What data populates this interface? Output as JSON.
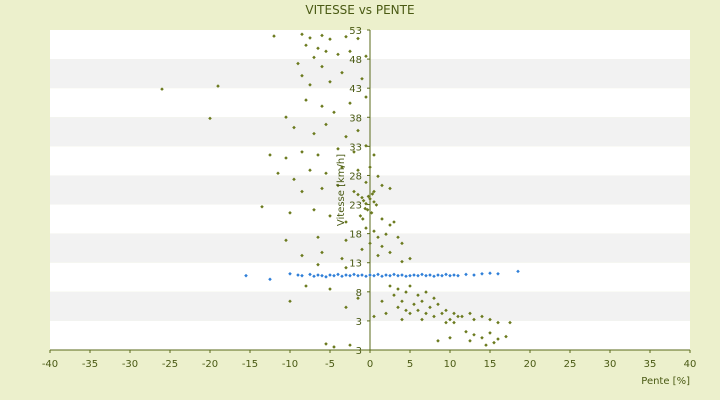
{
  "chart_data": {
    "type": "scatter",
    "title": "VITESSE vs PENTE",
    "xlabel": "Pente [%]",
    "ylabel": "Vitesse [km/h]",
    "xlim": [
      -40,
      40
    ],
    "ylim": [
      3,
      55.5
    ],
    "x_ticks": [
      -40,
      -35,
      -30,
      -25,
      -20,
      -15,
      -10,
      -5,
      0,
      5,
      10,
      15,
      20,
      25,
      30,
      35,
      40
    ],
    "y_tick_labels": [
      "53",
      "48",
      "43",
      "38",
      "33",
      "28",
      "23",
      "18",
      "13",
      "8",
      "3",
      "3"
    ],
    "grid": "horizontal bands",
    "legend": "none",
    "colors": {
      "background": "#ecf0cc",
      "band_light": "#ffffff",
      "band_dark": "#f2f2f2",
      "axis": "#5a6a1a",
      "text": "#4a5a14",
      "series_1": "#6b7a1e",
      "series_2": "#2f7fd8"
    },
    "series": [
      {
        "marker": "small-diamond",
        "color": "#6b7a1e",
        "points": [
          [
            -12.0,
            54.5
          ],
          [
            -8.5,
            54.8
          ],
          [
            -7.5,
            54.2
          ],
          [
            -6.0,
            54.6
          ],
          [
            -5.0,
            54.0
          ],
          [
            -3.0,
            54.4
          ],
          [
            -1.5,
            54.1
          ],
          [
            -8.0,
            53.0
          ],
          [
            -6.5,
            52.5
          ],
          [
            -5.5,
            52.0
          ],
          [
            -4.0,
            51.5
          ],
          [
            -7.0,
            51.0
          ],
          [
            -2.5,
            52.0
          ],
          [
            -0.5,
            51.2
          ],
          [
            -9.0,
            50.0
          ],
          [
            -6.0,
            49.5
          ],
          [
            -3.5,
            48.5
          ],
          [
            -8.5,
            48.0
          ],
          [
            -5.0,
            47.0
          ],
          [
            -1.0,
            47.5
          ],
          [
            -7.5,
            46.5
          ],
          [
            -26.0,
            45.8
          ],
          [
            -19.0,
            46.3
          ],
          [
            -20.0,
            41.0
          ],
          [
            -10.5,
            41.2
          ],
          [
            -8.0,
            44.0
          ],
          [
            -6.0,
            43.0
          ],
          [
            -4.5,
            42.0
          ],
          [
            -2.5,
            43.5
          ],
          [
            -0.5,
            44.5
          ],
          [
            -9.5,
            39.5
          ],
          [
            -7.0,
            38.5
          ],
          [
            -3.0,
            38.0
          ],
          [
            -1.5,
            39.0
          ],
          [
            -5.5,
            40.0
          ],
          [
            -12.5,
            35.0
          ],
          [
            -10.5,
            34.5
          ],
          [
            -8.5,
            35.5
          ],
          [
            -6.5,
            35.0
          ],
          [
            -4.0,
            36.0
          ],
          [
            -2.0,
            35.5
          ],
          [
            -0.5,
            36.5
          ],
          [
            0.5,
            35.0
          ],
          [
            -11.5,
            32.0
          ],
          [
            -9.5,
            31.0
          ],
          [
            -7.5,
            32.5
          ],
          [
            -5.5,
            32.0
          ],
          [
            -3.5,
            33.0
          ],
          [
            -1.5,
            32.5
          ],
          [
            0.0,
            33.0
          ],
          [
            1.0,
            31.5
          ],
          [
            -8.5,
            29.0
          ],
          [
            -6.0,
            29.5
          ],
          [
            -4.0,
            30.0
          ],
          [
            -2.0,
            29.0
          ],
          [
            -0.5,
            30.5
          ],
          [
            0.5,
            29.0
          ],
          [
            1.5,
            30.0
          ],
          [
            2.5,
            29.5
          ],
          [
            -1.5,
            28.5
          ],
          [
            -1.0,
            28.0
          ],
          [
            -0.8,
            27.5
          ],
          [
            -0.5,
            27.0
          ],
          [
            -0.2,
            28.2
          ],
          [
            0.0,
            27.8
          ],
          [
            0.3,
            28.6
          ],
          [
            0.5,
            27.3
          ],
          [
            0.8,
            26.8
          ],
          [
            -0.6,
            26.2
          ],
          [
            -0.3,
            26.0
          ],
          [
            0.2,
            25.5
          ],
          [
            -1.2,
            25.0
          ],
          [
            -0.9,
            24.5
          ],
          [
            -13.5,
            26.5
          ],
          [
            -10.0,
            25.5
          ],
          [
            -7.0,
            26.0
          ],
          [
            -5.0,
            25.0
          ],
          [
            -3.0,
            24.0
          ],
          [
            1.5,
            24.5
          ],
          [
            2.5,
            23.5
          ],
          [
            3.0,
            24.0
          ],
          [
            -0.5,
            23.0
          ],
          [
            0.5,
            22.5
          ],
          [
            1.0,
            21.5
          ],
          [
            2.0,
            22.0
          ],
          [
            -10.5,
            21.0
          ],
          [
            -6.5,
            21.5
          ],
          [
            -3.0,
            21.0
          ],
          [
            0.0,
            20.5
          ],
          [
            1.5,
            20.0
          ],
          [
            3.5,
            21.5
          ],
          [
            4.0,
            20.5
          ],
          [
            -8.5,
            18.5
          ],
          [
            -6.0,
            19.0
          ],
          [
            -3.5,
            18.0
          ],
          [
            -1.0,
            19.5
          ],
          [
            1.0,
            18.5
          ],
          [
            2.5,
            19.0
          ],
          [
            4.0,
            17.5
          ],
          [
            5.0,
            18.0
          ],
          [
            -6.5,
            17.0
          ],
          [
            -3.0,
            16.5
          ],
          [
            2.5,
            13.5
          ],
          [
            3.5,
            13.0
          ],
          [
            4.5,
            12.5
          ],
          [
            5.0,
            13.5
          ],
          [
            6.0,
            12.0
          ],
          [
            7.0,
            12.5
          ],
          [
            8.0,
            11.5
          ],
          [
            3.0,
            12.0
          ],
          [
            4.0,
            11.0
          ],
          [
            5.5,
            10.5
          ],
          [
            6.5,
            11.0
          ],
          [
            7.5,
            10.0
          ],
          [
            8.5,
            10.5
          ],
          [
            9.5,
            9.5
          ],
          [
            10.5,
            9.0
          ],
          [
            11.5,
            8.5
          ],
          [
            12.5,
            9.0
          ],
          [
            3.5,
            10.0
          ],
          [
            4.5,
            9.5
          ],
          [
            5.0,
            9.0
          ],
          [
            6.0,
            9.5
          ],
          [
            7.0,
            9.0
          ],
          [
            8.0,
            8.5
          ],
          [
            9.0,
            9.0
          ],
          [
            10.0,
            8.0
          ],
          [
            11.0,
            8.5
          ],
          [
            13.0,
            8.0
          ],
          [
            14.0,
            8.5
          ],
          [
            15.0,
            8.0
          ],
          [
            16.0,
            7.5
          ],
          [
            17.5,
            7.5
          ],
          [
            4.0,
            8.0
          ],
          [
            6.5,
            8.0
          ],
          [
            9.5,
            7.5
          ],
          [
            10.5,
            7.5
          ],
          [
            1.5,
            11.0
          ],
          [
            2.0,
            9.0
          ],
          [
            -1.5,
            11.5
          ],
          [
            -3.0,
            10.0
          ],
          [
            -10.0,
            11.0
          ],
          [
            -8.0,
            13.5
          ],
          [
            -5.0,
            13.0
          ],
          [
            0.5,
            8.5
          ],
          [
            12.0,
            6.0
          ],
          [
            13.0,
            5.5
          ],
          [
            14.0,
            5.0
          ],
          [
            15.0,
            5.8
          ],
          [
            16.0,
            4.8
          ],
          [
            17.0,
            5.2
          ],
          [
            12.5,
            4.5
          ],
          [
            15.5,
            4.2
          ],
          [
            14.5,
            3.8
          ],
          [
            8.5,
            4.5
          ],
          [
            10.0,
            5.0
          ],
          [
            -5.5,
            4.0
          ],
          [
            -4.5,
            3.5
          ],
          [
            -2.5,
            3.8
          ]
        ]
      },
      {
        "marker": "small-diamond",
        "color": "#2f7fd8",
        "points": [
          [
            -15.5,
            15.2
          ],
          [
            -12.5,
            14.6
          ],
          [
            -10.0,
            15.5
          ],
          [
            -9.0,
            15.3
          ],
          [
            -8.5,
            15.2
          ],
          [
            -7.5,
            15.4
          ],
          [
            -7.0,
            15.1
          ],
          [
            -6.5,
            15.3
          ],
          [
            -6.0,
            15.2
          ],
          [
            -5.5,
            15.0
          ],
          [
            -5.0,
            15.3
          ],
          [
            -4.5,
            15.2
          ],
          [
            -4.0,
            15.4
          ],
          [
            -3.5,
            15.1
          ],
          [
            -3.0,
            15.3
          ],
          [
            -2.5,
            15.2
          ],
          [
            -2.0,
            15.4
          ],
          [
            -1.5,
            15.2
          ],
          [
            -1.0,
            15.3
          ],
          [
            -0.5,
            15.1
          ],
          [
            0.0,
            15.3
          ],
          [
            0.5,
            15.2
          ],
          [
            1.0,
            15.4
          ],
          [
            1.5,
            15.1
          ],
          [
            2.0,
            15.3
          ],
          [
            2.5,
            15.2
          ],
          [
            3.0,
            15.4
          ],
          [
            3.5,
            15.2
          ],
          [
            4.0,
            15.3
          ],
          [
            4.5,
            15.1
          ],
          [
            5.0,
            15.2
          ],
          [
            5.5,
            15.3
          ],
          [
            6.0,
            15.2
          ],
          [
            6.5,
            15.4
          ],
          [
            7.0,
            15.2
          ],
          [
            7.5,
            15.3
          ],
          [
            8.0,
            15.1
          ],
          [
            8.5,
            15.3
          ],
          [
            9.0,
            15.2
          ],
          [
            9.5,
            15.4
          ],
          [
            10.0,
            15.2
          ],
          [
            10.5,
            15.3
          ],
          [
            11.0,
            15.2
          ],
          [
            12.0,
            15.4
          ],
          [
            13.0,
            15.3
          ],
          [
            14.0,
            15.5
          ],
          [
            15.0,
            15.6
          ],
          [
            16.0,
            15.5
          ],
          [
            18.5,
            15.9
          ]
        ]
      }
    ]
  }
}
